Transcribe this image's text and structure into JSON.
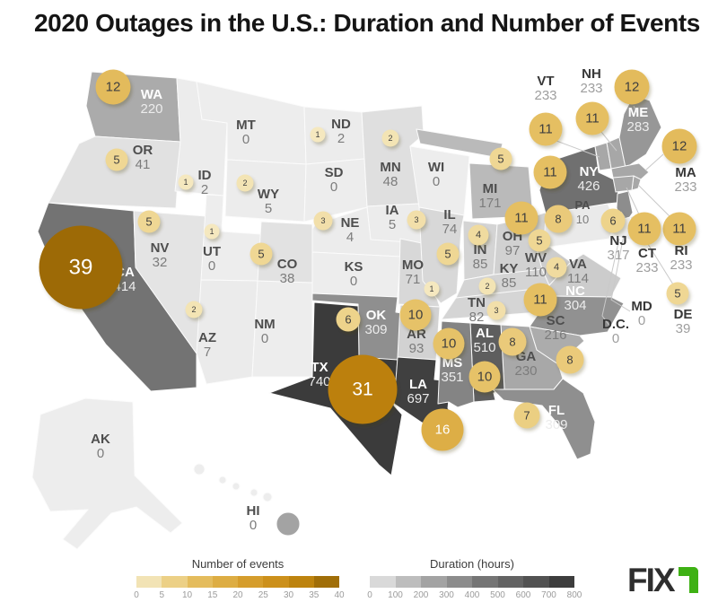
{
  "title": "2020 Outages in the U.S.: Duration and Number of Events",
  "logo": {
    "brand": "FIX",
    "accent_color": "#3eb114",
    "text_color": "#2e2e2e"
  },
  "legends": {
    "events": {
      "title": "Number of events",
      "ticks": [
        "0",
        "5",
        "10",
        "15",
        "20",
        "25",
        "30",
        "35",
        "40"
      ],
      "segment_colors": [
        "#f2e3b5",
        "#ecd086",
        "#e4bc5d",
        "#ddad43",
        "#d59d2c",
        "#cc901b",
        "#bd830e",
        "#a06e08"
      ]
    },
    "duration": {
      "title": "Duration (hours)",
      "ticks": [
        "0",
        "100",
        "200",
        "300",
        "400",
        "500",
        "600",
        "700",
        "800"
      ],
      "segment_colors": [
        "#d9d9d9",
        "#bdbdbd",
        "#a3a3a3",
        "#8c8c8c",
        "#757575",
        "#636363",
        "#525252",
        "#3d3d3d"
      ]
    }
  },
  "chart_data": {
    "type": "choropleth_bubble_map",
    "title": "2020 Outages in the U.S.: Duration and Number of Events",
    "metrics": [
      "Duration (hours)",
      "Number of events"
    ],
    "duration_range": [
      0,
      800
    ],
    "events_range": [
      0,
      40
    ],
    "state_fill_stops": [
      {
        "value": 0,
        "color": "#ededed"
      },
      {
        "value": 100,
        "color": "#d0d0d0"
      },
      {
        "value": 200,
        "color": "#b1b1b1"
      },
      {
        "value": 300,
        "color": "#929292"
      },
      {
        "value": 400,
        "color": "#767676"
      },
      {
        "value": 500,
        "color": "#606060"
      },
      {
        "value": 600,
        "color": "#4e4e4e"
      },
      {
        "value": 700,
        "color": "#404040"
      },
      {
        "value": 800,
        "color": "#333333"
      }
    ],
    "bubble_fill_stops": [
      {
        "value": 0,
        "color": "#f6ecca"
      },
      {
        "value": 5,
        "color": "#efd794"
      },
      {
        "value": 10,
        "color": "#e6c268"
      },
      {
        "value": 15,
        "color": "#dfb14b"
      },
      {
        "value": 20,
        "color": "#d7a133"
      },
      {
        "value": 25,
        "color": "#cd921d"
      },
      {
        "value": 30,
        "color": "#c0830f"
      },
      {
        "value": 35,
        "color": "#ab7407"
      },
      {
        "value": 40,
        "color": "#996806"
      }
    ],
    "states": [
      {
        "abbr": "WA",
        "duration_hours": 220,
        "events": 12
      },
      {
        "abbr": "OR",
        "duration_hours": 41,
        "events": 5
      },
      {
        "abbr": "CA",
        "duration_hours": 414,
        "events": 39
      },
      {
        "abbr": "NV",
        "duration_hours": 32,
        "events": 5
      },
      {
        "abbr": "ID",
        "duration_hours": 2,
        "events": 1
      },
      {
        "abbr": "MT",
        "duration_hours": 0,
        "events": 0
      },
      {
        "abbr": "WY",
        "duration_hours": 5,
        "events": 2
      },
      {
        "abbr": "UT",
        "duration_hours": 0,
        "events": 1
      },
      {
        "abbr": "AZ",
        "duration_hours": 7,
        "events": 2
      },
      {
        "abbr": "NM",
        "duration_hours": 0,
        "events": 0
      },
      {
        "abbr": "CO",
        "duration_hours": 38,
        "events": 5
      },
      {
        "abbr": "ND",
        "duration_hours": 2,
        "events": 1
      },
      {
        "abbr": "SD",
        "duration_hours": 0,
        "events": 0
      },
      {
        "abbr": "NE",
        "duration_hours": 4,
        "events": 3
      },
      {
        "abbr": "KS",
        "duration_hours": 0,
        "events": 0
      },
      {
        "abbr": "OK",
        "duration_hours": 309,
        "events": 6
      },
      {
        "abbr": "TX",
        "duration_hours": 740,
        "events": 31
      },
      {
        "abbr": "MN",
        "duration_hours": 48,
        "events": 2
      },
      {
        "abbr": "IA",
        "duration_hours": 5,
        "events": 3
      },
      {
        "abbr": "MO",
        "duration_hours": 71,
        "events": 1
      },
      {
        "abbr": "AR",
        "duration_hours": 93,
        "events": 10
      },
      {
        "abbr": "LA",
        "duration_hours": 697,
        "events": 16
      },
      {
        "abbr": "WI",
        "duration_hours": 0,
        "events": 0
      },
      {
        "abbr": "IL",
        "duration_hours": 74,
        "events": 5
      },
      {
        "abbr": "MI",
        "duration_hours": 171,
        "events": 5
      },
      {
        "abbr": "IN",
        "duration_hours": 85,
        "events": 4
      },
      {
        "abbr": "OH",
        "duration_hours": 97,
        "events": 11
      },
      {
        "abbr": "KY",
        "duration_hours": 85,
        "events": 2
      },
      {
        "abbr": "TN",
        "duration_hours": 82,
        "events": 3
      },
      {
        "abbr": "WV",
        "duration_hours": 110,
        "events": 5
      },
      {
        "abbr": "VA",
        "duration_hours": 114,
        "events": 4
      },
      {
        "abbr": "NC",
        "duration_hours": 304,
        "events": 11
      },
      {
        "abbr": "SC",
        "duration_hours": 216,
        "events": 8
      },
      {
        "abbr": "GA",
        "duration_hours": 230,
        "events": 8
      },
      {
        "abbr": "AL",
        "duration_hours": 510,
        "events": 10
      },
      {
        "abbr": "MS",
        "duration_hours": 351,
        "events": 10
      },
      {
        "abbr": "FL",
        "duration_hours": 309,
        "events": 7
      },
      {
        "abbr": "PA",
        "duration_hours": 10,
        "events": 8
      },
      {
        "abbr": "NY",
        "duration_hours": 426,
        "events": 11
      },
      {
        "abbr": "VT",
        "duration_hours": 233,
        "events": 11
      },
      {
        "abbr": "NH",
        "duration_hours": 233,
        "events": 11
      },
      {
        "abbr": "ME",
        "duration_hours": 283,
        "events": 12
      },
      {
        "abbr": "MA",
        "duration_hours": 233,
        "events": 12
      },
      {
        "abbr": "RI",
        "duration_hours": 233,
        "events": 11
      },
      {
        "abbr": "CT",
        "duration_hours": 233,
        "events": 11
      },
      {
        "abbr": "NJ",
        "duration_hours": 317,
        "events": 6
      },
      {
        "abbr": "DE",
        "duration_hours": 39,
        "events": 5
      },
      {
        "abbr": "MD",
        "duration_hours": 0,
        "events": 0
      },
      {
        "abbr": "DC",
        "label": "D.C.",
        "duration_hours": 0,
        "events": 0
      },
      {
        "abbr": "AK",
        "duration_hours": 0,
        "events": 0
      },
      {
        "abbr": "HI",
        "duration_hours": 0,
        "events": 0
      }
    ]
  }
}
